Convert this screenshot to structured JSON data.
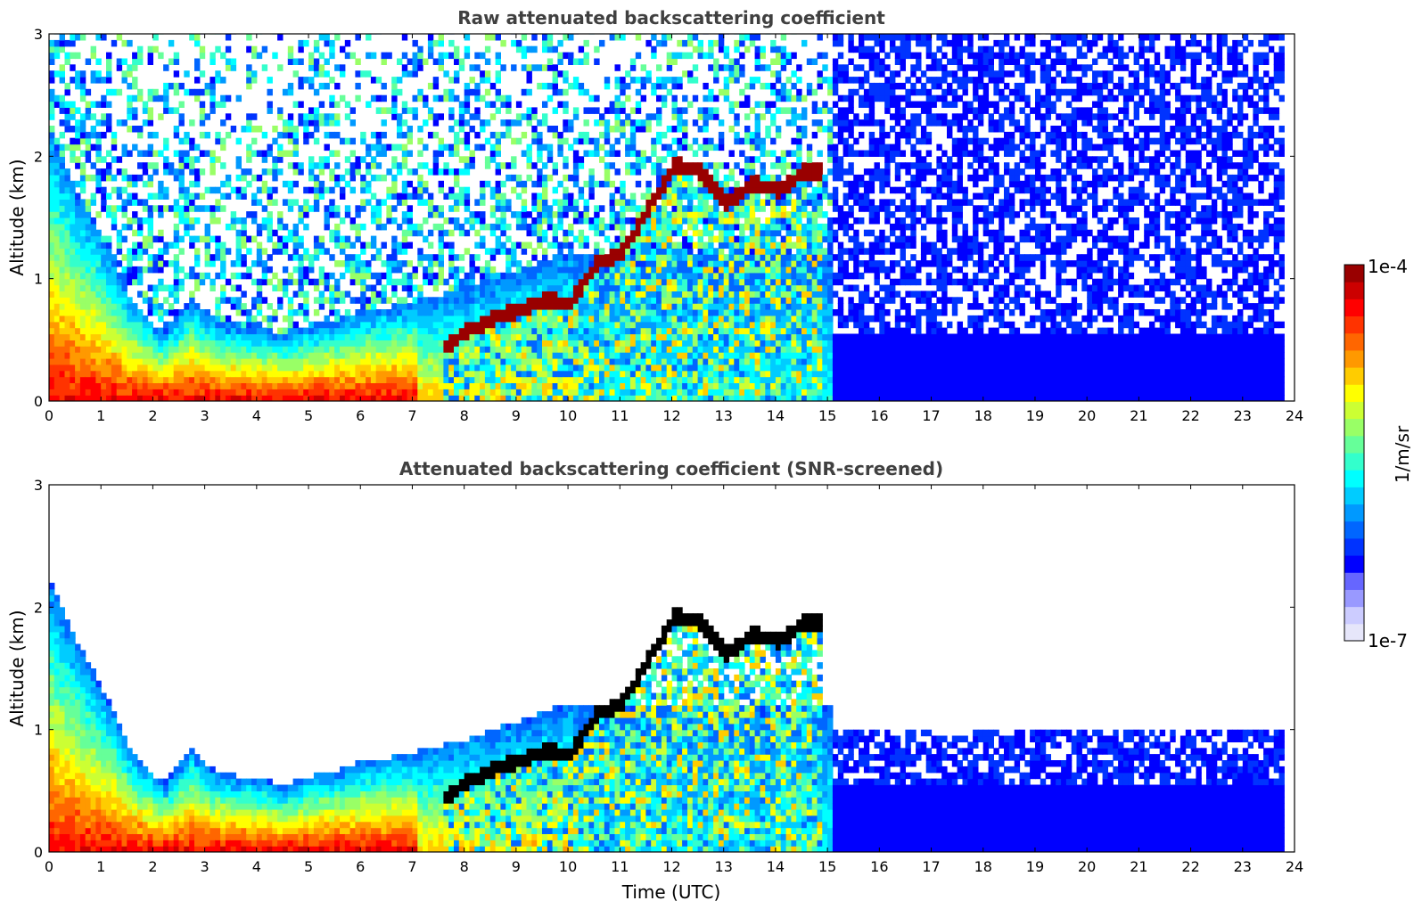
{
  "chart_data": [
    {
      "type": "heatmap",
      "title": "Raw attenuated backscattering coefficient",
      "xlabel": "",
      "ylabel": "Altitude (km)",
      "xlim": [
        0,
        24
      ],
      "ylim": [
        0,
        3
      ],
      "xticks": [
        "0",
        "1",
        "2",
        "3",
        "4",
        "5",
        "6",
        "7",
        "8",
        "9",
        "10",
        "11",
        "12",
        "13",
        "14",
        "15",
        "16",
        "17",
        "18",
        "19",
        "20",
        "21",
        "22",
        "23",
        "24"
      ],
      "yticks": [
        "0",
        "1",
        "2",
        "3"
      ],
      "data_end_hour": 23.8,
      "boundary_layer_top_km": [
        {
          "t": 0,
          "z": 2.2
        },
        {
          "t": 0.5,
          "z": 1.7
        },
        {
          "t": 1,
          "z": 1.3
        },
        {
          "t": 1.5,
          "z": 0.85
        },
        {
          "t": 2,
          "z": 0.6
        },
        {
          "t": 2.2,
          "z": 0.55
        },
        {
          "t": 2.7,
          "z": 0.82
        },
        {
          "t": 3.2,
          "z": 0.62
        },
        {
          "t": 4,
          "z": 0.58
        },
        {
          "t": 4.5,
          "z": 0.52
        },
        {
          "t": 5,
          "z": 0.6
        },
        {
          "t": 5.5,
          "z": 0.65
        },
        {
          "t": 6,
          "z": 0.72
        },
        {
          "t": 6.5,
          "z": 0.75
        },
        {
          "t": 7,
          "z": 0.8
        },
        {
          "t": 8,
          "z": 0.9
        },
        {
          "t": 9,
          "z": 1.05
        },
        {
          "t": 10,
          "z": 1.2
        }
      ],
      "cloud_base_km": [
        {
          "t": 7.5,
          "z": 0.4
        },
        {
          "t": 8,
          "z": 0.55
        },
        {
          "t": 8.5,
          "z": 0.65
        },
        {
          "t": 9,
          "z": 0.72
        },
        {
          "t": 9.5,
          "z": 0.8
        },
        {
          "t": 10,
          "z": 0.78
        },
        {
          "t": 10.5,
          "z": 1.1
        },
        {
          "t": 11,
          "z": 1.2
        },
        {
          "t": 11.5,
          "z": 1.55
        },
        {
          "t": 12,
          "z": 1.9
        },
        {
          "t": 12.5,
          "z": 1.85
        },
        {
          "t": 13,
          "z": 1.6
        },
        {
          "t": 13.5,
          "z": 1.75
        },
        {
          "t": 14,
          "z": 1.7
        },
        {
          "t": 14.5,
          "z": 1.85
        }
      ]
    },
    {
      "type": "heatmap",
      "title": "Attenuated backscattering coefficient (SNR-screened)",
      "xlabel": "Time (UTC)",
      "ylabel": "Altitude (km)",
      "xlim": [
        0,
        24
      ],
      "ylim": [
        0,
        3
      ],
      "xticks": [
        "0",
        "1",
        "2",
        "3",
        "4",
        "5",
        "6",
        "7",
        "8",
        "9",
        "10",
        "11",
        "12",
        "13",
        "14",
        "15",
        "16",
        "17",
        "18",
        "19",
        "20",
        "21",
        "22",
        "23",
        "24"
      ],
      "yticks": [
        "0",
        "1",
        "2",
        "3"
      ],
      "data_end_hour": 23.8
    }
  ],
  "colorbar": {
    "max_label": "1e-4",
    "min_label": "1e-7",
    "unit_label": "1/m/sr",
    "colors": [
      "#e6e6fa",
      "#ccccff",
      "#9999ff",
      "#6666ff",
      "#0000ff",
      "#0033ff",
      "#0066ff",
      "#0099ff",
      "#00ccff",
      "#00ffff",
      "#33ffcc",
      "#66ff99",
      "#99ff66",
      "#ccff33",
      "#ffff00",
      "#ffcc00",
      "#ff9900",
      "#ff6600",
      "#ff3300",
      "#ff0000",
      "#cc0000",
      "#990000"
    ]
  }
}
